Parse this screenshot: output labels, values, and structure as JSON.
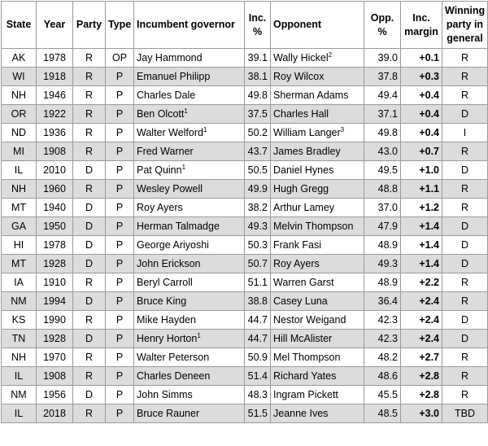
{
  "headers": {
    "state": "State",
    "year": "Year",
    "party": "Party",
    "type": "Type",
    "incumbent": "Incumbent governor",
    "inc_pct": "Inc. %",
    "opponent": "Opponent",
    "opp_pct": "Opp. %",
    "margin": "Inc. margin",
    "winning": "Winning party in general"
  },
  "colors": {
    "republican": "#ff0000",
    "democrat": "#5b9bd5",
    "independent": "#ffc000",
    "row_alt": "#dcdcdc",
    "border": "#9a9a9a"
  },
  "rows": [
    {
      "state": "AK",
      "year": "1978",
      "party": "R",
      "type": "OP",
      "incumbent": "Jay Hammond",
      "inc_sup": "",
      "inc_pct": "39.1",
      "opponent": "Wally Hickel",
      "opp_sup": "2",
      "opp_pct": "39.0",
      "margin": "+0.1",
      "winner": "R"
    },
    {
      "state": "WI",
      "year": "1918",
      "party": "R",
      "type": "P",
      "incumbent": "Emanuel Philipp",
      "inc_sup": "",
      "inc_pct": "38.1",
      "opponent": "Roy Wilcox",
      "opp_sup": "",
      "opp_pct": "37.8",
      "margin": "+0.3",
      "winner": "R"
    },
    {
      "state": "NH",
      "year": "1946",
      "party": "R",
      "type": "P",
      "incumbent": "Charles Dale",
      "inc_sup": "",
      "inc_pct": "49.8",
      "opponent": "Sherman Adams",
      "opp_sup": "",
      "opp_pct": "49.4",
      "margin": "+0.4",
      "winner": "R"
    },
    {
      "state": "OR",
      "year": "1922",
      "party": "R",
      "type": "P",
      "incumbent": "Ben Olcott",
      "inc_sup": "1",
      "inc_pct": "37.5",
      "opponent": "Charles Hall",
      "opp_sup": "",
      "opp_pct": "37.1",
      "margin": "+0.4",
      "winner": "D"
    },
    {
      "state": "ND",
      "year": "1936",
      "party": "R",
      "type": "P",
      "incumbent": "Walter Welford",
      "inc_sup": "1",
      "inc_pct": "50.2",
      "opponent": "William Langer",
      "opp_sup": "3",
      "opp_pct": "49.8",
      "margin": "+0.4",
      "winner": "I"
    },
    {
      "state": "MI",
      "year": "1908",
      "party": "R",
      "type": "P",
      "incumbent": "Fred Warner",
      "inc_sup": "",
      "inc_pct": "43.7",
      "opponent": "James Bradley",
      "opp_sup": "",
      "opp_pct": "43.0",
      "margin": "+0.7",
      "winner": "R"
    },
    {
      "state": "IL",
      "year": "2010",
      "party": "D",
      "type": "P",
      "incumbent": "Pat Quinn",
      "inc_sup": "1",
      "inc_pct": "50.5",
      "opponent": "Daniel Hynes",
      "opp_sup": "",
      "opp_pct": "49.5",
      "margin": "+1.0",
      "winner": "D"
    },
    {
      "state": "NH",
      "year": "1960",
      "party": "R",
      "type": "P",
      "incumbent": "Wesley Powell",
      "inc_sup": "",
      "inc_pct": "49.9",
      "opponent": "Hugh Gregg",
      "opp_sup": "",
      "opp_pct": "48.8",
      "margin": "+1.1",
      "winner": "R"
    },
    {
      "state": "MT",
      "year": "1940",
      "party": "D",
      "type": "P",
      "incumbent": "Roy Ayers",
      "inc_sup": "",
      "inc_pct": "38.2",
      "opponent": "Arthur Lamey",
      "opp_sup": "",
      "opp_pct": "37.0",
      "margin": "+1.2",
      "winner": "R"
    },
    {
      "state": "GA",
      "year": "1950",
      "party": "D",
      "type": "P",
      "incumbent": "Herman Talmadge",
      "inc_sup": "",
      "inc_pct": "49.3",
      "opponent": "Melvin Thompson",
      "opp_sup": "",
      "opp_pct": "47.9",
      "margin": "+1.4",
      "winner": "D"
    },
    {
      "state": "HI",
      "year": "1978",
      "party": "D",
      "type": "P",
      "incumbent": "George Ariyoshi",
      "inc_sup": "",
      "inc_pct": "50.3",
      "opponent": "Frank Fasi",
      "opp_sup": "",
      "opp_pct": "48.9",
      "margin": "+1.4",
      "winner": "D"
    },
    {
      "state": "MT",
      "year": "1928",
      "party": "D",
      "type": "P",
      "incumbent": "John Erickson",
      "inc_sup": "",
      "inc_pct": "50.7",
      "opponent": "Roy Ayers",
      "opp_sup": "",
      "opp_pct": "49.3",
      "margin": "+1.4",
      "winner": "D"
    },
    {
      "state": "IA",
      "year": "1910",
      "party": "R",
      "type": "P",
      "incumbent": "Beryl Carroll",
      "inc_sup": "",
      "inc_pct": "51.1",
      "opponent": "Warren Garst",
      "opp_sup": "",
      "opp_pct": "48.9",
      "margin": "+2.2",
      "winner": "R"
    },
    {
      "state": "NM",
      "year": "1994",
      "party": "D",
      "type": "P",
      "incumbent": "Bruce King",
      "inc_sup": "",
      "inc_pct": "38.8",
      "opponent": "Casey Luna",
      "opp_sup": "",
      "opp_pct": "36.4",
      "margin": "+2.4",
      "winner": "R"
    },
    {
      "state": "KS",
      "year": "1990",
      "party": "R",
      "type": "P",
      "incumbent": "Mike Hayden",
      "inc_sup": "",
      "inc_pct": "44.7",
      "opponent": "Nestor Weigand",
      "opp_sup": "",
      "opp_pct": "42.3",
      "margin": "+2.4",
      "winner": "D"
    },
    {
      "state": "TN",
      "year": "1928",
      "party": "D",
      "type": "P",
      "incumbent": "Henry Horton",
      "inc_sup": "1",
      "inc_pct": "44.7",
      "opponent": "Hill McAlister",
      "opp_sup": "",
      "opp_pct": "42.3",
      "margin": "+2.4",
      "winner": "D"
    },
    {
      "state": "NH",
      "year": "1970",
      "party": "R",
      "type": "P",
      "incumbent": "Walter Peterson",
      "inc_sup": "",
      "inc_pct": "50.9",
      "opponent": "Mel Thompson",
      "opp_sup": "",
      "opp_pct": "48.2",
      "margin": "+2.7",
      "winner": "R"
    },
    {
      "state": "IL",
      "year": "1908",
      "party": "R",
      "type": "P",
      "incumbent": "Charles Deneen",
      "inc_sup": "",
      "inc_pct": "51.4",
      "opponent": "Richard Yates",
      "opp_sup": "",
      "opp_pct": "48.6",
      "margin": "+2.8",
      "winner": "R"
    },
    {
      "state": "NM",
      "year": "1956",
      "party": "D",
      "type": "P",
      "incumbent": "John Simms",
      "inc_sup": "",
      "inc_pct": "48.3",
      "opponent": "Ingram Pickett",
      "opp_sup": "",
      "opp_pct": "45.5",
      "margin": "+2.8",
      "winner": "R"
    },
    {
      "state": "IL",
      "year": "2018",
      "party": "R",
      "type": "P",
      "incumbent": "Bruce Rauner",
      "inc_sup": "",
      "inc_pct": "51.5",
      "opponent": "Jeanne Ives",
      "opp_sup": "",
      "opp_pct": "48.5",
      "margin": "+3.0",
      "winner": "TBD"
    }
  ]
}
